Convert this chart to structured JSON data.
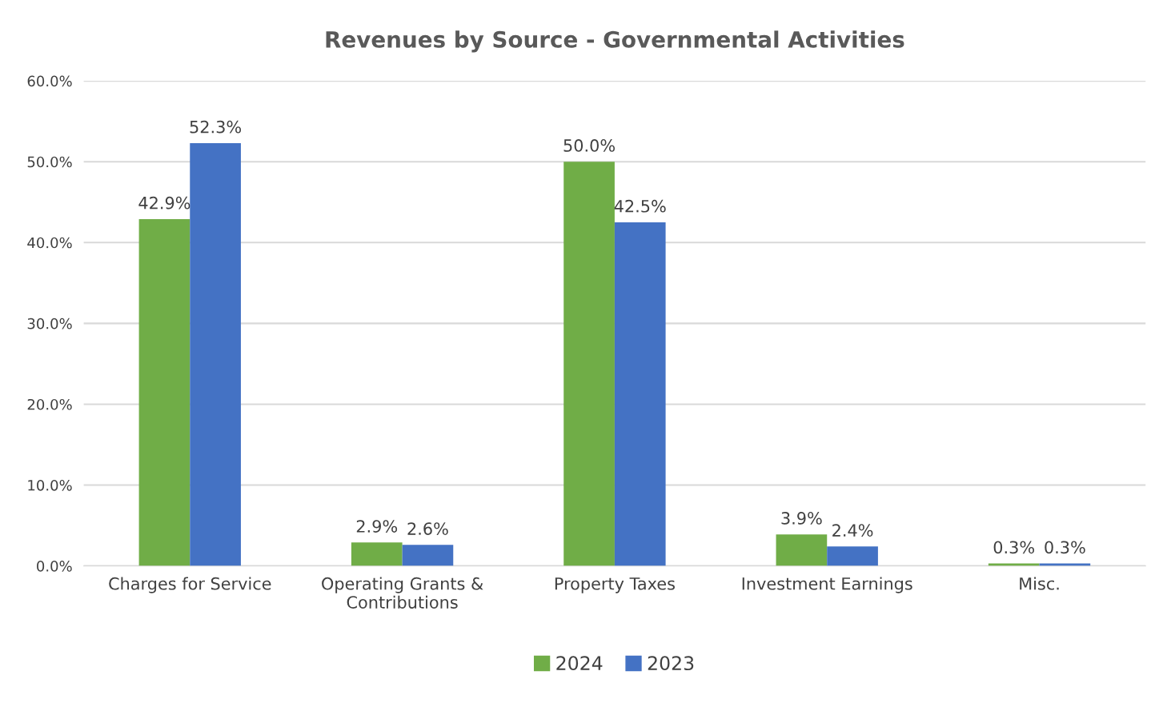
{
  "chart_data": {
    "type": "bar",
    "title": "Revenues by Source - Governmental Activities",
    "categories": [
      "Charges for Service",
      "Operating Grants &\nContributions",
      "Property Taxes",
      "Investment Earnings",
      "Misc."
    ],
    "series": [
      {
        "name": "2024",
        "color": "#70ad47",
        "values": [
          42.9,
          2.9,
          50.0,
          3.9,
          0.3
        ],
        "value_labels": [
          "42.9%",
          "2.9%",
          "50.0%",
          "3.9%",
          "0.3%"
        ]
      },
      {
        "name": "2023",
        "color": "#4472c4",
        "values": [
          52.3,
          2.6,
          42.5,
          2.4,
          0.3
        ],
        "value_labels": [
          "52.3%",
          "2.6%",
          "42.5%",
          "2.4%",
          "0.3%"
        ]
      }
    ],
    "ylim": [
      0,
      60
    ],
    "yticks": [
      {
        "value": 0,
        "label": "0.0%"
      },
      {
        "value": 10,
        "label": "10.0%"
      },
      {
        "value": 20,
        "label": "20.0%"
      },
      {
        "value": 30,
        "label": "30.0%"
      },
      {
        "value": 40,
        "label": "40.0%"
      },
      {
        "value": 50,
        "label": "50.0%"
      },
      {
        "value": 60,
        "label": "60.0%"
      }
    ],
    "grid": "y",
    "legend": "bottom"
  }
}
